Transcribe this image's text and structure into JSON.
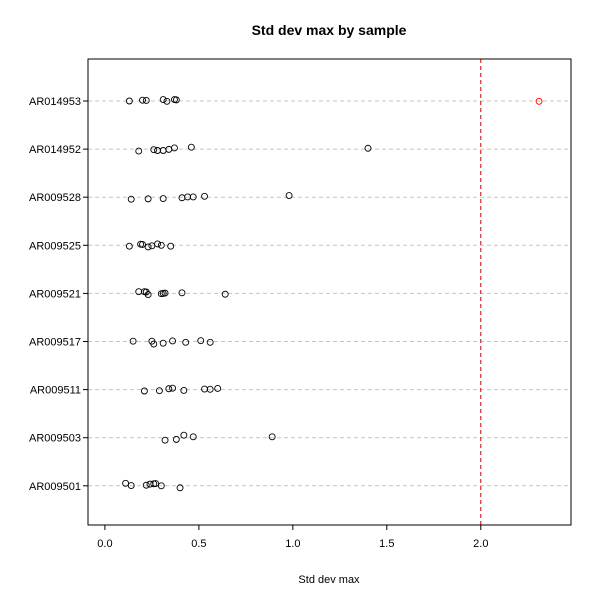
{
  "chart_data": {
    "type": "scatter",
    "title": "Std dev max by sample",
    "xlabel": "Std dev max",
    "ylabel": "",
    "xlim": [
      -0.09,
      2.48
    ],
    "xticks": [
      0.0,
      0.5,
      1.0,
      1.5,
      2.0
    ],
    "xtick_labels": [
      "0.0",
      "0.5",
      "1.0",
      "1.5",
      "2.0"
    ],
    "grid": "horizontal dashed at each sample",
    "threshold": {
      "x": 2.0,
      "style": "dashed",
      "color": "#cc0000"
    },
    "categories": [
      "AR014953",
      "AR014952",
      "AR009528",
      "AR009525",
      "AR009521",
      "AR009517",
      "AR009511",
      "AR009503",
      "AR009501"
    ],
    "series": [
      {
        "category": "AR014953",
        "points": [
          [
            0.13,
            0.0
          ],
          [
            0.2,
            0.03
          ],
          [
            0.22,
            0.02
          ],
          [
            0.31,
            0.05
          ],
          [
            0.33,
            -0.01
          ],
          [
            0.37,
            0.05
          ],
          [
            0.38,
            0.04
          ],
          [
            2.31,
            -0.01
          ]
        ]
      },
      {
        "category": "AR014952",
        "points": [
          [
            0.18,
            -0.07
          ],
          [
            0.26,
            -0.02
          ],
          [
            0.28,
            -0.05
          ],
          [
            0.31,
            -0.05
          ],
          [
            0.34,
            -0.01
          ],
          [
            0.37,
            0.04
          ],
          [
            0.46,
            0.07
          ],
          [
            1.4,
            0.03
          ]
        ]
      },
      {
        "category": "AR009528",
        "points": [
          [
            0.14,
            -0.07
          ],
          [
            0.23,
            -0.06
          ],
          [
            0.31,
            -0.05
          ],
          [
            0.41,
            -0.02
          ],
          [
            0.44,
            0.01
          ],
          [
            0.47,
            0.01
          ],
          [
            0.53,
            0.03
          ],
          [
            0.98,
            0.06
          ]
        ]
      },
      {
        "category": "AR009525",
        "points": [
          [
            0.13,
            -0.03
          ],
          [
            0.19,
            0.04
          ],
          [
            0.2,
            0.03
          ],
          [
            0.23,
            -0.06
          ],
          [
            0.25,
            -0.02
          ],
          [
            0.28,
            0.05
          ],
          [
            0.3,
            0.0
          ],
          [
            0.35,
            -0.03
          ]
        ]
      },
      {
        "category": "AR009521",
        "points": [
          [
            0.18,
            0.06
          ],
          [
            0.21,
            0.06
          ],
          [
            0.22,
            0.05
          ],
          [
            0.23,
            -0.04
          ],
          [
            0.3,
            -0.01
          ],
          [
            0.31,
            0.0
          ],
          [
            0.32,
            0.01
          ],
          [
            0.41,
            0.02
          ],
          [
            0.64,
            -0.03
          ]
        ]
      },
      {
        "category": "AR009517",
        "points": [
          [
            0.15,
            0.01
          ],
          [
            0.25,
            0.01
          ],
          [
            0.26,
            -0.09
          ],
          [
            0.31,
            -0.06
          ],
          [
            0.36,
            0.02
          ],
          [
            0.43,
            -0.03
          ],
          [
            0.51,
            0.03
          ],
          [
            0.56,
            -0.03
          ]
        ]
      },
      {
        "category": "AR009511",
        "points": [
          [
            0.21,
            -0.05
          ],
          [
            0.29,
            -0.04
          ],
          [
            0.34,
            0.03
          ],
          [
            0.36,
            0.05
          ],
          [
            0.42,
            -0.03
          ],
          [
            0.53,
            0.02
          ],
          [
            0.56,
            0.01
          ],
          [
            0.6,
            0.04
          ]
        ]
      },
      {
        "category": "AR009503",
        "points": [
          [
            0.32,
            -0.09
          ],
          [
            0.38,
            -0.06
          ],
          [
            0.42,
            0.09
          ],
          [
            0.47,
            0.03
          ],
          [
            0.89,
            0.03
          ]
        ]
      },
      {
        "category": "AR009501",
        "points": [
          [
            0.11,
            0.09
          ],
          [
            0.14,
            0.01
          ],
          [
            0.22,
            0.02
          ],
          [
            0.24,
            0.06
          ],
          [
            0.26,
            0.07
          ],
          [
            0.27,
            0.08
          ],
          [
            0.3,
            0.0
          ],
          [
            0.4,
            -0.07
          ]
        ]
      }
    ],
    "highlight_color": "#ff0000",
    "grid_color": "#c8c8a8"
  }
}
